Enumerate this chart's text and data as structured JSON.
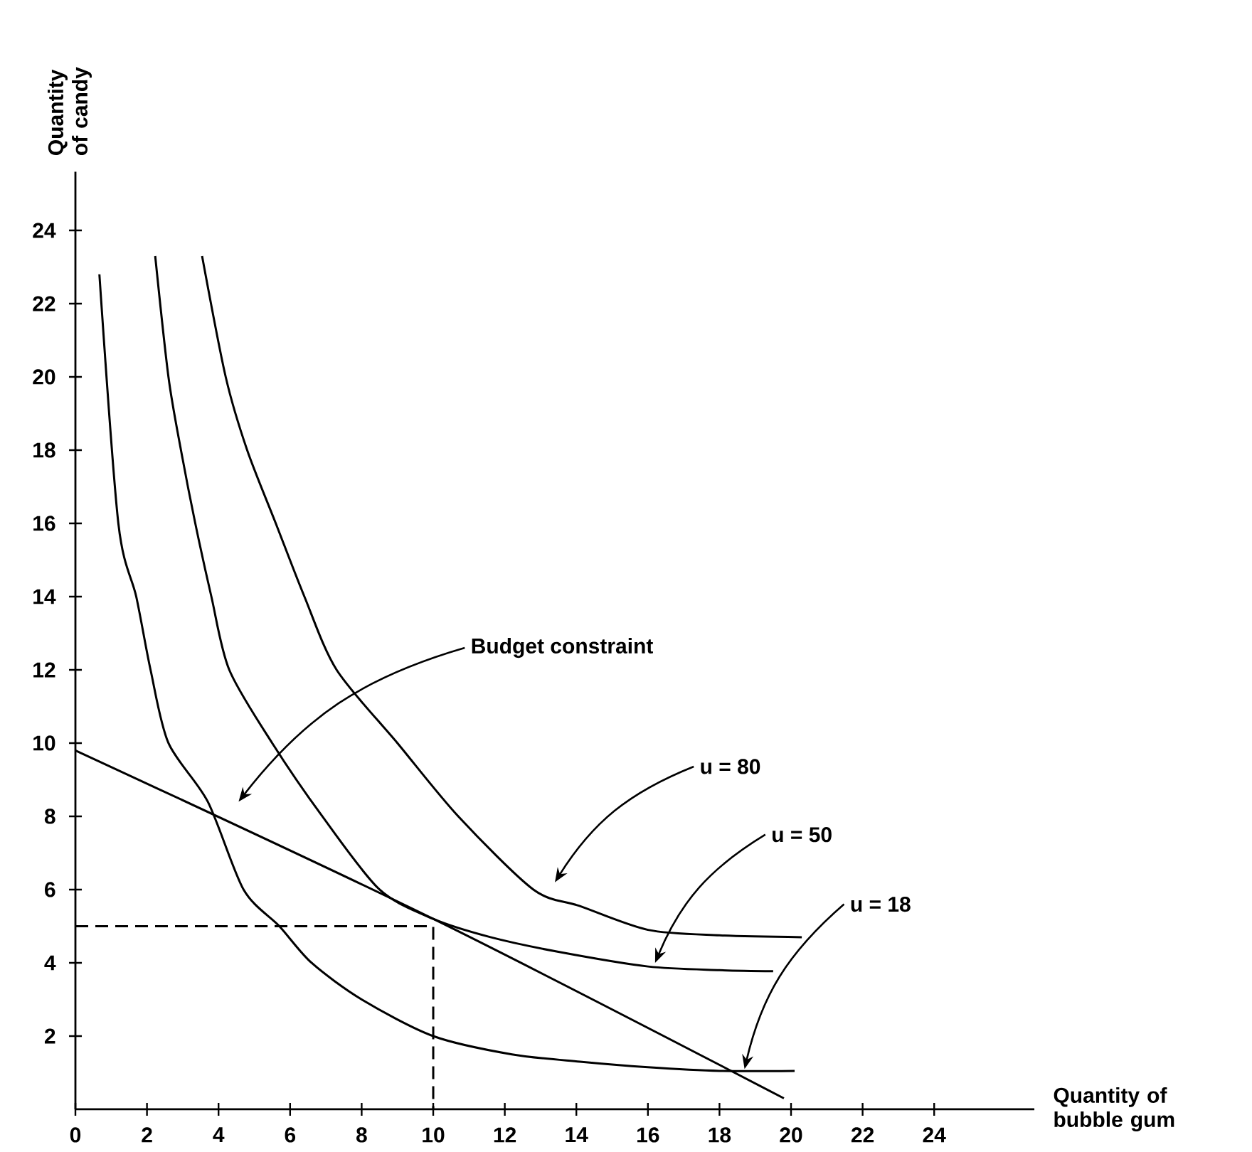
{
  "chart_data": {
    "type": "line",
    "xlabel": "Quantity of bubble gum",
    "ylabel": "Quantity of candy",
    "xlim": [
      0,
      26.8
    ],
    "ylim": [
      0,
      25.6
    ],
    "xticks": [
      0,
      2,
      4,
      6,
      8,
      10,
      12,
      14,
      16,
      18,
      20,
      22,
      24
    ],
    "yticks": [
      2,
      4,
      6,
      8,
      10,
      12,
      14,
      16,
      18,
      20,
      22,
      24
    ],
    "grid": false,
    "series": [
      {
        "color": "#000000",
        "x": [
          0.67,
          1.2,
          1.7,
          2.1,
          2.6,
          3.7,
          4.7,
          5.7,
          6.6,
          8,
          10,
          12.2,
          14.1,
          16,
          18,
          20.1
        ],
        "values": [
          22.8,
          16,
          14,
          12,
          10,
          8.4,
          6,
          5,
          4,
          3,
          2,
          1.5,
          1.3,
          1.15,
          1.05,
          1.05
        ]
      },
      {
        "color": "#000000",
        "x": [
          2.23,
          2.6,
          2.95,
          3.35,
          3.8,
          4.3,
          5.5,
          6.9,
          8.5,
          10,
          11.6,
          13.5,
          16,
          18,
          19.5
        ],
        "values": [
          23.3,
          20,
          18,
          16,
          14,
          12,
          10,
          8,
          6,
          5.2,
          4.7,
          4.3,
          3.9,
          3.8,
          3.77
        ]
      },
      {
        "color": "#000000",
        "x": [
          3.54,
          4.2,
          4.8,
          5.6,
          6.4,
          7.3,
          9,
          10.7,
          12.8,
          14.1,
          16,
          18,
          20.3
        ],
        "values": [
          23.3,
          20,
          18,
          16,
          14,
          12,
          10,
          8,
          6,
          5.55,
          4.9,
          4.75,
          4.7
        ]
      },
      {
        "color": "#000000",
        "x": [
          0,
          10,
          19.8
        ],
        "values": [
          9.8,
          5.2,
          0.3
        ]
      },
      {
        "color": "#000000",
        "line_style": "dashed",
        "x": [
          0,
          10,
          10
        ],
        "values": [
          5,
          5,
          0
        ]
      }
    ],
    "annotations": [
      "Budget constraint",
      "u = 80",
      "u = 50",
      "u = 18"
    ]
  }
}
